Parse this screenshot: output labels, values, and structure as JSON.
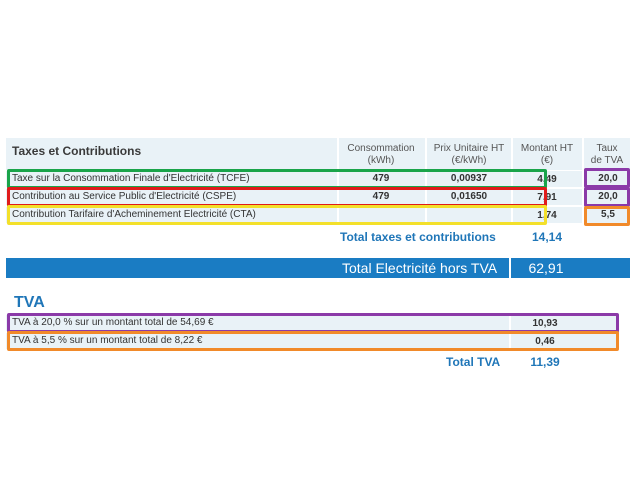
{
  "header": {
    "title": "Taxes et Contributions",
    "col_consumption_line1": "Consommation",
    "col_consumption_line2": "(kWh)",
    "col_unit_price_line1": "Prix Unitaire HT",
    "col_unit_price_line2": "(€/kWh)",
    "col_amount_line1": "Montant HT",
    "col_amount_line2": "(€)",
    "col_rate_line1": "Taux",
    "col_rate_line2": "de TVA"
  },
  "taxes": [
    {
      "label": "Taxe sur la Consommation Finale d'Electricité (TCFE)",
      "consumption": "479",
      "unit_price": "0,00937",
      "amount": "4,49",
      "rate": "20,0"
    },
    {
      "label": "Contribution au Service Public d'Electricité (CSPE)",
      "consumption": "479",
      "unit_price": "0,01650",
      "amount": "7,91",
      "rate": "20,0"
    },
    {
      "label": "Contribution Tarifaire d'Acheminement Electricité (CTA)",
      "consumption": "",
      "unit_price": "",
      "amount": "1,74",
      "rate": "5,5"
    }
  ],
  "total_taxes": {
    "label": "Total taxes et contributions",
    "value": "14,14"
  },
  "total_electricity": {
    "label": "Total Electricité hors TVA",
    "value": "62,91"
  },
  "tva": {
    "title": "TVA",
    "rows": [
      {
        "label": "TVA à 20,0 % sur un montant total de 54,69 €",
        "value": "10,93"
      },
      {
        "label": "TVA à 5,5 % sur un montant total de 8,22 €",
        "value": "0,46"
      }
    ],
    "total_label": "Total TVA",
    "total_value": "11,39"
  },
  "colors": {
    "green": "#1aa44a",
    "red": "#e01b1b",
    "yellow": "#f3e02a",
    "purple": "#8b3aa8",
    "orange": "#f18a2a",
    "accent_blue": "#1f76b8"
  }
}
